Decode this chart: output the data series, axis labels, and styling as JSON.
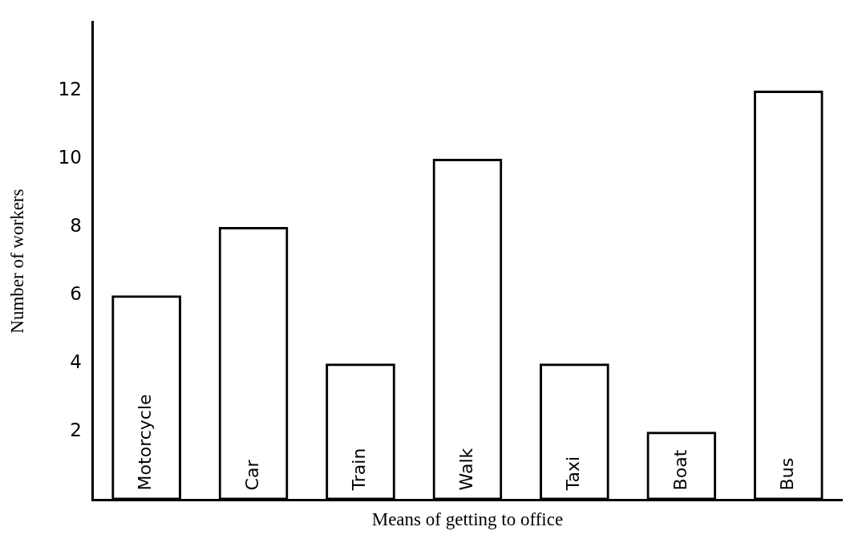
{
  "chart_data": {
    "type": "bar",
    "xlabel": "Means of getting to office",
    "ylabel": "Number of workers",
    "categories": [
      "Motorcycle",
      "Car",
      "Train",
      "Walk",
      "Taxi",
      "Boat",
      "Bus"
    ],
    "values": [
      6,
      8,
      4,
      10,
      4,
      2,
      12
    ],
    "color": "#000000",
    "ylim": [
      0,
      14
    ],
    "yticks": [
      2,
      4,
      6,
      8,
      10,
      12
    ],
    "grid": false,
    "legend": false
  }
}
